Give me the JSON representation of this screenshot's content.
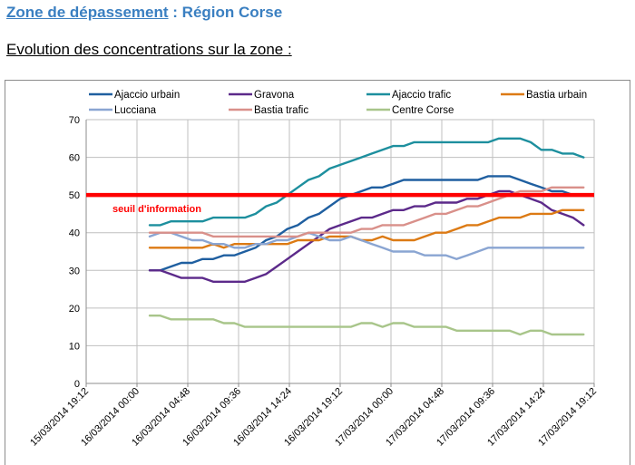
{
  "header": {
    "zone_link": "Zone de dépassement",
    "separator": " : ",
    "region": "Région Corse",
    "subtitle": "Evolution des concentrations sur la zone :"
  },
  "chart_data": {
    "type": "line",
    "title": "",
    "xlabel": "",
    "ylabel": "",
    "ylim": [
      0,
      70
    ],
    "yticks": [
      0,
      10,
      20,
      30,
      40,
      50,
      60,
      70
    ],
    "grid": true,
    "legend_position": "top",
    "x_tick_labels": [
      "15/03/2014 19:12",
      "16/03/2014 00:00",
      "16/03/2014 04:48",
      "16/03/2014 09:36",
      "16/03/2014 14:24",
      "16/03/2014 19:12",
      "17/03/2014 00:00",
      "17/03/2014 04:48",
      "17/03/2014 09:36",
      "17/03/2014 14:24",
      "17/03/2014 19:12"
    ],
    "x_tick_hours": [
      0,
      4.8,
      9.6,
      14.4,
      19.2,
      24,
      28.8,
      33.6,
      38.4,
      43.2,
      48
    ],
    "x_hours": [
      6.0,
      7.0,
      8.0,
      9.0,
      10.0,
      11.0,
      12.0,
      13.0,
      14.0,
      15.0,
      16.0,
      17.0,
      18.0,
      19.0,
      20.0,
      21.0,
      22.0,
      23.0,
      24.0,
      25.0,
      26.0,
      27.0,
      28.0,
      29.0,
      30.0,
      31.0,
      32.0,
      33.0,
      34.0,
      35.0,
      36.0,
      37.0,
      38.0,
      39.0,
      40.0,
      41.0,
      42.0,
      43.0,
      44.0,
      45.0,
      46.0,
      47.0
    ],
    "series": [
      {
        "name": "Ajaccio urbain",
        "color": "#1f5fa0",
        "values": [
          30,
          30,
          31,
          32,
          32,
          33,
          33,
          34,
          34,
          35,
          36,
          38,
          39,
          41,
          42,
          44,
          45,
          47,
          49,
          50,
          51,
          52,
          52,
          53,
          54,
          54,
          54,
          54,
          54,
          54,
          54,
          54,
          55,
          55,
          55,
          54,
          53,
          52,
          51,
          51,
          50,
          50
        ]
      },
      {
        "name": "Gravona",
        "color": "#5c2a8a",
        "values": [
          30,
          30,
          29,
          28,
          28,
          28,
          27,
          27,
          27,
          27,
          28,
          29,
          31,
          33,
          35,
          37,
          39,
          41,
          42,
          43,
          44,
          44,
          45,
          46,
          46,
          47,
          47,
          48,
          48,
          48,
          49,
          49,
          50,
          51,
          51,
          50,
          49,
          48,
          46,
          45,
          44,
          42
        ]
      },
      {
        "name": "Ajaccio trafic",
        "color": "#1d8f9e",
        "values": [
          42,
          42,
          43,
          43,
          43,
          43,
          44,
          44,
          44,
          44,
          45,
          47,
          48,
          50,
          52,
          54,
          55,
          57,
          58,
          59,
          60,
          61,
          62,
          63,
          63,
          64,
          64,
          64,
          64,
          64,
          64,
          64,
          64,
          65,
          65,
          65,
          64,
          62,
          62,
          61,
          61,
          60
        ]
      },
      {
        "name": "Bastia urbain",
        "color": "#dc7a14",
        "values": [
          36,
          36,
          36,
          36,
          36,
          36,
          37,
          36,
          37,
          37,
          37,
          37,
          37,
          37,
          38,
          38,
          38,
          39,
          39,
          39,
          38,
          38,
          39,
          38,
          38,
          38,
          39,
          40,
          40,
          41,
          42,
          42,
          43,
          44,
          44,
          44,
          45,
          45,
          45,
          46,
          46,
          46
        ]
      },
      {
        "name": "Lucciana",
        "color": "#8aa5d2",
        "values": [
          39,
          40,
          40,
          39,
          38,
          38,
          37,
          37,
          36,
          36,
          37,
          37,
          38,
          38,
          39,
          40,
          39,
          38,
          38,
          39,
          38,
          37,
          36,
          35,
          35,
          35,
          34,
          34,
          34,
          33,
          34,
          35,
          36,
          36,
          36,
          36,
          36,
          36,
          36,
          36,
          36,
          36
        ]
      },
      {
        "name": "Bastia trafic",
        "color": "#d9908a",
        "values": [
          40,
          40,
          40,
          40,
          40,
          40,
          39,
          39,
          39,
          39,
          39,
          39,
          39,
          39,
          39,
          40,
          40,
          40,
          40,
          40,
          41,
          41,
          42,
          42,
          42,
          43,
          44,
          45,
          45,
          46,
          47,
          47,
          48,
          49,
          50,
          51,
          51,
          51,
          52,
          52,
          52,
          52
        ]
      },
      {
        "name": "Centre Corse",
        "color": "#a8c58a",
        "values": [
          18,
          18,
          17,
          17,
          17,
          17,
          17,
          16,
          16,
          15,
          15,
          15,
          15,
          15,
          15,
          15,
          15,
          15,
          15,
          15,
          16,
          16,
          15,
          16,
          16,
          15,
          15,
          15,
          15,
          14,
          14,
          14,
          14,
          14,
          14,
          13,
          14,
          14,
          13,
          13,
          13,
          13
        ]
      }
    ],
    "reference_line": {
      "label": "seuil d'information",
      "value": 50,
      "color": "#ff0000"
    }
  }
}
